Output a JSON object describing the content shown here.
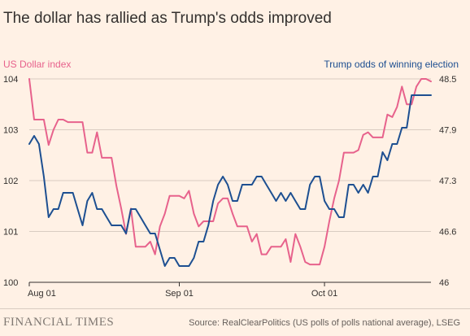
{
  "title": "The dollar has rallied as Trump's odds improved",
  "brand": "FINANCIAL TIMES",
  "source": "Source: RealClearPolitics (US polls of polls national average), LSEG",
  "colors": {
    "dollar": "#e7628c",
    "trump": "#1d4f91",
    "grid": "#d9ccc1",
    "axis": "#33302e",
    "text": "#66605c"
  },
  "chart_data": {
    "type": "line",
    "title": "The dollar has rallied as Trump's odds improved",
    "x_ticks": [
      "Aug 01",
      "Sep 01",
      "Oct 01"
    ],
    "x_tick_index": [
      0,
      31,
      61
    ],
    "x_count": 84,
    "left_axis": {
      "label": "US Dollar index",
      "ticks": [
        "104",
        "103",
        "102",
        "101",
        "100"
      ],
      "range": [
        100,
        104
      ]
    },
    "right_axis": {
      "label": "Trump odds of winning election",
      "ticks": [
        "48.5",
        "47.9",
        "47.3",
        "46.6",
        "46"
      ],
      "range": [
        46,
        48.5
      ]
    },
    "series": [
      {
        "name": "US Dollar index",
        "axis": "left",
        "color": "#e7628c",
        "values": [
          104.0,
          103.2,
          103.2,
          103.2,
          102.7,
          103.0,
          103.2,
          103.2,
          103.15,
          103.15,
          103.15,
          103.15,
          102.55,
          102.55,
          102.95,
          102.45,
          102.45,
          102.45,
          101.9,
          101.45,
          100.95,
          101.45,
          100.7,
          100.7,
          100.7,
          100.8,
          100.55,
          101.1,
          101.35,
          101.7,
          101.7,
          101.7,
          101.65,
          101.8,
          101.35,
          101.1,
          101.2,
          101.2,
          101.2,
          101.55,
          101.65,
          101.65,
          101.35,
          101.1,
          101.1,
          101.1,
          100.8,
          100.95,
          100.55,
          100.55,
          100.7,
          100.7,
          100.7,
          100.85,
          100.4,
          100.95,
          100.7,
          100.4,
          100.35,
          100.35,
          100.35,
          100.7,
          101.2,
          101.65,
          102.0,
          102.55,
          102.55,
          102.55,
          102.6,
          102.9,
          102.95,
          102.85,
          102.85,
          102.85,
          103.3,
          103.25,
          103.45,
          103.85,
          103.5,
          103.5,
          103.85,
          104.0,
          104.0,
          103.95
        ]
      },
      {
        "name": "Trump odds of winning election",
        "axis": "right",
        "color": "#1d4f91",
        "values": [
          47.7,
          47.8,
          47.7,
          47.3,
          46.8,
          46.9,
          46.9,
          47.1,
          47.1,
          47.1,
          46.9,
          46.7,
          47.0,
          47.1,
          46.9,
          46.9,
          46.8,
          46.7,
          46.7,
          46.7,
          46.6,
          46.9,
          46.9,
          46.8,
          46.7,
          46.6,
          46.6,
          46.4,
          46.2,
          46.3,
          46.3,
          46.2,
          46.2,
          46.2,
          46.3,
          46.5,
          46.5,
          46.7,
          47.0,
          47.2,
          47.3,
          47.2,
          47.0,
          47.0,
          47.2,
          47.2,
          47.2,
          47.3,
          47.3,
          47.2,
          47.1,
          47.0,
          47.1,
          47.0,
          47.1,
          47.0,
          46.9,
          46.9,
          47.2,
          47.3,
          47.3,
          47.0,
          46.9,
          46.9,
          46.8,
          46.8,
          47.2,
          47.2,
          47.1,
          47.2,
          47.1,
          47.3,
          47.3,
          47.6,
          47.5,
          47.7,
          47.7,
          47.9,
          47.9,
          48.3,
          48.3,
          48.3,
          48.3,
          48.3
        ]
      }
    ],
    "grid": true
  }
}
